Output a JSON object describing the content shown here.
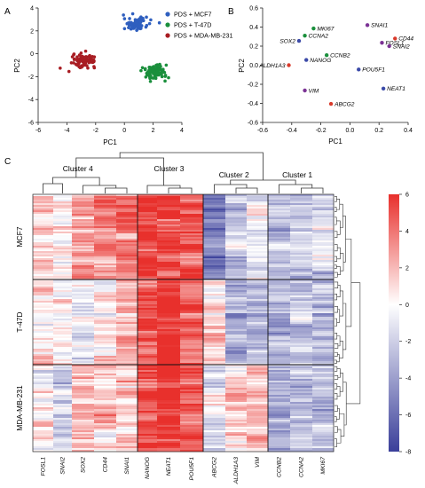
{
  "panels": {
    "a": "A",
    "b": "B",
    "c": "C"
  },
  "chart_data": [
    {
      "type": "scatter",
      "xlabel": "PC1",
      "ylabel": "PC2",
      "xlim": [
        -6,
        4
      ],
      "ylim": [
        -6,
        4
      ],
      "xticks": [
        "-6",
        "-4",
        "-2",
        "0",
        "2",
        "4"
      ],
      "yticks": [
        "-6",
        "-4",
        "-2",
        "0",
        "2",
        "4"
      ],
      "grid": false,
      "legend_position": "top-right",
      "series": [
        {
          "name": "PDS + MCF7",
          "color": "#2f5fbf",
          "center": [
            0.8,
            2.6
          ],
          "spread": [
            0.7,
            0.45
          ],
          "n": 90
        },
        {
          "name": "PDS + T-47D",
          "color": "#1a8f3c",
          "center": [
            2.1,
            -1.6
          ],
          "spread": [
            0.7,
            0.55
          ],
          "n": 100
        },
        {
          "name": "PDS + MDA-MB-231",
          "color": "#a81c22",
          "center": [
            -2.8,
            -0.6
          ],
          "spread": [
            0.65,
            0.45
          ],
          "n": 90
        }
      ]
    },
    {
      "type": "scatter",
      "xlabel": "PC1",
      "ylabel": "PC2",
      "xlim": [
        -0.6,
        0.4
      ],
      "ylim": [
        -0.6,
        0.6
      ],
      "xticks": [
        "-0.6",
        "-0.4",
        "-0.2",
        "0.0",
        "0.2",
        "0.4"
      ],
      "yticks": [
        "-0.6",
        "-0.4",
        "-0.2",
        "0.0",
        "0.2",
        "0.4",
        "0.6"
      ],
      "grid": false,
      "points": [
        {
          "label": "MKI67",
          "x": -0.25,
          "y": 0.385,
          "color": "#1a8f3c"
        },
        {
          "label": "CCNA2",
          "x": -0.31,
          "y": 0.31,
          "color": "#1a8f3c"
        },
        {
          "label": "SOX2",
          "x": -0.35,
          "y": 0.255,
          "color": "#3b4aa8"
        },
        {
          "label": "CCNB2",
          "x": -0.16,
          "y": 0.105,
          "color": "#1a8f3c"
        },
        {
          "label": "NANOG",
          "x": -0.3,
          "y": 0.055,
          "color": "#3b4aa8"
        },
        {
          "label": "ALDH1A3",
          "x": -0.42,
          "y": 0.0,
          "color": "#d93a2b"
        },
        {
          "label": "VIM",
          "x": -0.31,
          "y": -0.265,
          "color": "#7b3294"
        },
        {
          "label": "ABCG2",
          "x": -0.13,
          "y": -0.405,
          "color": "#d93a2b"
        },
        {
          "label": "SNAI1",
          "x": 0.12,
          "y": 0.42,
          "color": "#7b3294"
        },
        {
          "label": "CD44",
          "x": 0.31,
          "y": 0.28,
          "color": "#d93a2b"
        },
        {
          "label": "FOSL1",
          "x": 0.22,
          "y": 0.235,
          "color": "#7b3294"
        },
        {
          "label": "SNAI2",
          "x": 0.27,
          "y": 0.2,
          "color": "#7b3294"
        },
        {
          "label": "POU5F1",
          "x": 0.06,
          "y": -0.045,
          "color": "#3b4aa8"
        },
        {
          "label": "NEAT1",
          "x": 0.23,
          "y": -0.245,
          "color": "#3b4aa8"
        }
      ]
    },
    {
      "type": "heatmap",
      "row_groups": [
        "MCF7",
        "T-47D",
        "MDA-MB-231"
      ],
      "columns": [
        "FOSL1",
        "SNAI2",
        "SOX2",
        "CD44",
        "SNAI1",
        "NANOG",
        "NEAT1",
        "POU5F1",
        "ABCG2",
        "ALDH1A3",
        "VIM",
        "CCNB2",
        "CCNA2",
        "MKI67"
      ],
      "clusters": [
        {
          "name": "Cluster 4",
          "columns": [
            "FOSL1",
            "SNAI2",
            "SOX2",
            "CD44",
            "SNAI1"
          ]
        },
        {
          "name": "Cluster 3",
          "columns": [
            "NANOG",
            "NEAT1",
            "POU5F1"
          ]
        },
        {
          "name": "Cluster 2",
          "columns": [
            "ABCG2",
            "ALDH1A3",
            "VIM"
          ]
        },
        {
          "name": "Cluster 1",
          "columns": [
            "CCNB2",
            "CCNA2",
            "MKI67"
          ]
        }
      ],
      "mean_values": [
        [
          1.0,
          0.2,
          3.0,
          3.6,
          4.5,
          5.8,
          5.3,
          4.9,
          -5.8,
          -1.6,
          -0.7,
          -2.3,
          -2.3,
          -2.0
        ],
        [
          0.2,
          0.4,
          -1.0,
          0.5,
          2.2,
          4.8,
          6.0,
          4.3,
          0.5,
          -3.2,
          -2.8,
          -3.0,
          -2.6,
          -2.8
        ],
        [
          0.3,
          -1.6,
          1.6,
          1.8,
          1.0,
          5.8,
          5.8,
          4.8,
          -0.9,
          1.6,
          1.9,
          -3.3,
          -2.5,
          -2.4
        ]
      ],
      "colorbar": {
        "min": -8,
        "max": 6,
        "ticks": [
          "6",
          "4",
          "2",
          "0",
          "-2",
          "-4",
          "-6",
          "-8"
        ]
      },
      "colors": {
        "high": "#e8302c",
        "mid": "#ffffff",
        "low": "#3a3f9a"
      }
    }
  ]
}
